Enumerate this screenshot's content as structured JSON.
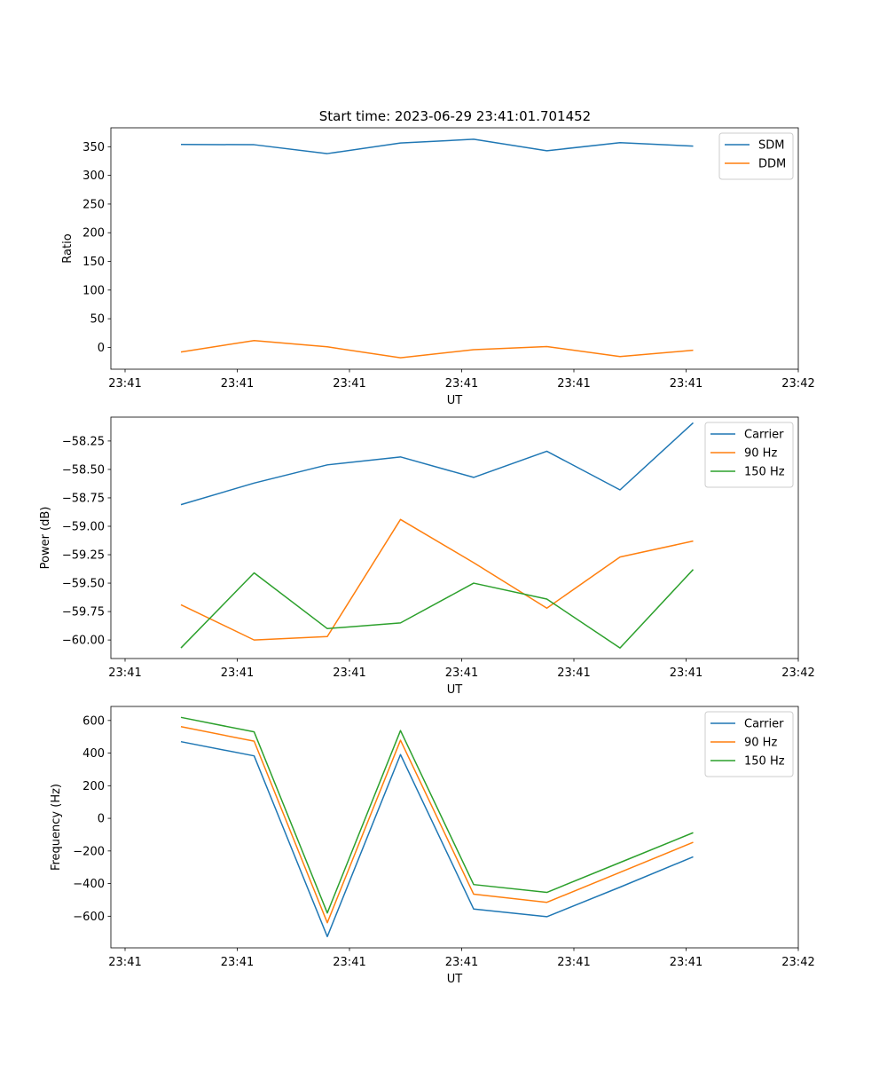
{
  "figure_title": "Start time: 2023-06-29 23:41:01.701452",
  "colors": {
    "c0": "#1f77b4",
    "c1": "#ff7f0e",
    "c2": "#2ca02c"
  },
  "chart_data": [
    {
      "type": "line",
      "xlabel": "UT",
      "ylabel": "Ratio",
      "x_tick_labels": [
        "23:41",
        "23:41",
        "23:41",
        "23:41",
        "23:41",
        "23:41",
        "23:42"
      ],
      "yticks": [
        0,
        50,
        100,
        150,
        200,
        250,
        300,
        350
      ],
      "ylim": [
        -38,
        383
      ],
      "legend_position": "top-right",
      "series": [
        {
          "name": "SDM",
          "color": "#1f77b4",
          "values": [
            354,
            353.5,
            338,
            356.5,
            363,
            343,
            357,
            351
          ]
        },
        {
          "name": "DDM",
          "color": "#ff7f0e",
          "values": [
            -8,
            12,
            1,
            -18,
            -4,
            1.5,
            -16,
            -5
          ]
        }
      ]
    },
    {
      "type": "line",
      "xlabel": "UT",
      "ylabel": "Power (dB)",
      "x_tick_labels": [
        "23:41",
        "23:41",
        "23:41",
        "23:41",
        "23:41",
        "23:41",
        "23:42"
      ],
      "yticks": [
        -60.0,
        -59.75,
        -59.5,
        -59.25,
        -59.0,
        -58.75,
        -58.5,
        -58.25
      ],
      "ytick_labels": [
        "−60.00",
        "−59.75",
        "−59.50",
        "−59.25",
        "−59.00",
        "−58.75",
        "−58.50",
        "−58.25"
      ],
      "ylim": [
        -60.163,
        -58.04
      ],
      "legend_position": "top-right",
      "series": [
        {
          "name": "Carrier",
          "color": "#1f77b4",
          "values": [
            -58.81,
            -58.62,
            -58.46,
            -58.39,
            -58.57,
            -58.34,
            -58.68,
            -58.09
          ]
        },
        {
          "name": "90 Hz",
          "color": "#ff7f0e",
          "values": [
            -59.69,
            -60.0,
            -59.97,
            -58.94,
            -59.32,
            -59.72,
            -59.27,
            -59.13
          ]
        },
        {
          "name": "150 Hz",
          "color": "#2ca02c",
          "values": [
            -60.07,
            -59.41,
            -59.9,
            -59.85,
            -59.5,
            -59.64,
            -60.07,
            -59.38
          ]
        }
      ]
    },
    {
      "type": "line",
      "xlabel": "UT",
      "ylabel": "Frequency (Hz)",
      "x_tick_labels": [
        "23:41",
        "23:41",
        "23:41",
        "23:41",
        "23:41",
        "23:41",
        "23:42"
      ],
      "yticks": [
        -600,
        -400,
        -200,
        0,
        200,
        400,
        600
      ],
      "ytick_labels": [
        "−600",
        "−400",
        "−200",
        "0",
        "200",
        "400",
        "600"
      ],
      "ylim": [
        -794,
        686
      ],
      "legend_position": "top-right",
      "series": [
        {
          "name": "Carrier",
          "color": "#1f77b4",
          "values": [
            470,
            383,
            -725,
            391,
            -556,
            -603,
            -422,
            -236
          ]
        },
        {
          "name": "90 Hz",
          "color": "#ff7f0e",
          "values": [
            562,
            473,
            -640,
            479,
            -465,
            -515,
            -331,
            -147
          ]
        },
        {
          "name": "150 Hz",
          "color": "#2ca02c",
          "values": [
            619,
            530,
            -580,
            538,
            -406,
            -454,
            -271,
            -88
          ]
        }
      ]
    }
  ]
}
